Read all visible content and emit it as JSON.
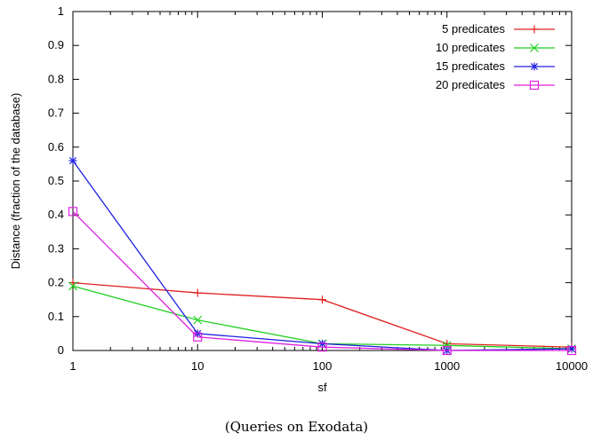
{
  "chart_data": {
    "type": "line",
    "xscale": "log",
    "x": [
      1,
      10,
      100,
      1000,
      10000
    ],
    "x_tick_labels": [
      "1",
      "10",
      "100",
      "1000",
      "10000"
    ],
    "y_tick_labels": [
      "0",
      "0.1",
      "0.2",
      "0.3",
      "0.4",
      "0.5",
      "0.6",
      "0.7",
      "0.8",
      "0.9",
      "1"
    ],
    "xlim": [
      1,
      10000
    ],
    "ylim": [
      0,
      1
    ],
    "xlabel": "sf",
    "ylabel": "Distance (fraction of the database)",
    "legend_position": "top-right",
    "grid": false,
    "series": [
      {
        "name": "5 predicates",
        "color": "#e02020",
        "marker": "plus",
        "values": [
          0.2,
          0.17,
          0.15,
          0.02,
          0.01
        ]
      },
      {
        "name": "10 predicates",
        "color": "#20d020",
        "marker": "x",
        "values": [
          0.19,
          0.09,
          0.02,
          0.015,
          0.005
        ]
      },
      {
        "name": "15 predicates",
        "color": "#2020e0",
        "marker": "star",
        "values": [
          0.56,
          0.05,
          0.02,
          0.0,
          0.005
        ]
      },
      {
        "name": "20 predicates",
        "color": "#e020e0",
        "marker": "square",
        "values": [
          0.41,
          0.04,
          0.01,
          0.0,
          0.0
        ]
      }
    ]
  },
  "caption": "(Queries on Exodata)"
}
